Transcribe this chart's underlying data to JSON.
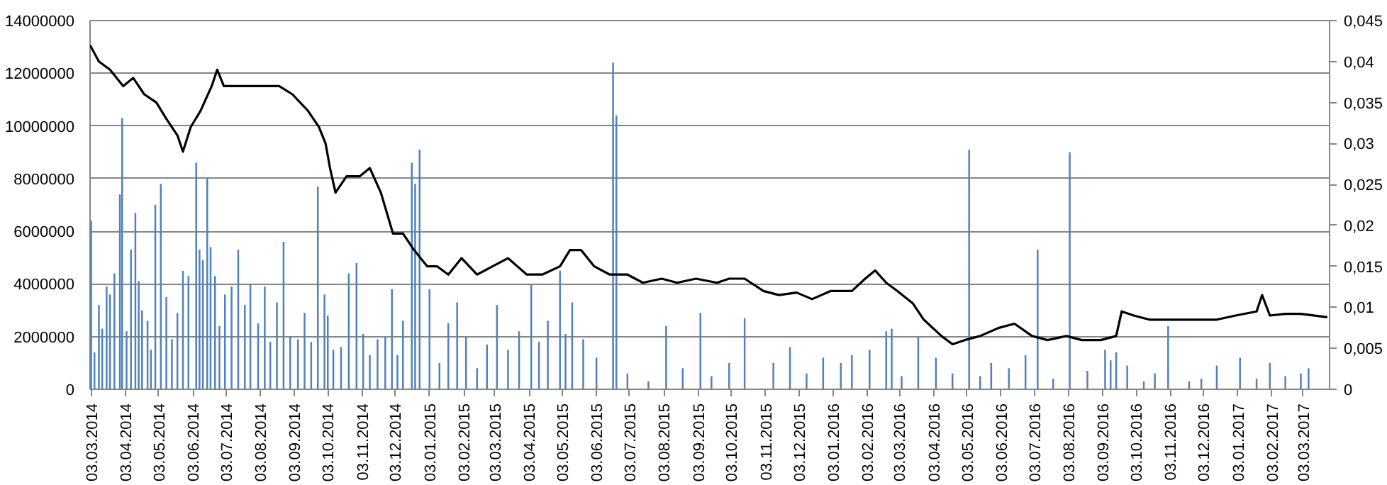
{
  "chart_data": {
    "type": "bar",
    "xlim": [
      "2014-03-02",
      "2017-03-27"
    ],
    "xticks": [
      {
        "value": "2014-03-03",
        "label": "03.03.2014"
      },
      {
        "value": "2014-04-03",
        "label": "03.04.2014"
      },
      {
        "value": "2014-05-03",
        "label": "03.05.2014"
      },
      {
        "value": "2014-06-03",
        "label": "03.06.2014"
      },
      {
        "value": "2014-07-03",
        "label": "03.07.2014"
      },
      {
        "value": "2014-08-03",
        "label": "03.08.2014"
      },
      {
        "value": "2014-09-03",
        "label": "03.09.2014"
      },
      {
        "value": "2014-10-03",
        "label": "03.10.2014"
      },
      {
        "value": "2014-11-03",
        "label": "03.11.2014"
      },
      {
        "value": "2014-12-03",
        "label": "03.12.2014"
      },
      {
        "value": "2015-01-03",
        "label": "03.01.2015"
      },
      {
        "value": "2015-02-03",
        "label": "03.02.2015"
      },
      {
        "value": "2015-03-03",
        "label": "03.03.2015"
      },
      {
        "value": "2015-04-03",
        "label": "03.04.2015"
      },
      {
        "value": "2015-05-03",
        "label": "03.05.2015"
      },
      {
        "value": "2015-06-03",
        "label": "03.06.2015"
      },
      {
        "value": "2015-07-03",
        "label": "03.07.2015"
      },
      {
        "value": "2015-08-03",
        "label": "03.08.2015"
      },
      {
        "value": "2015-09-03",
        "label": "03.09.2015"
      },
      {
        "value": "2015-10-03",
        "label": "03.10.2015"
      },
      {
        "value": "2015-11-03",
        "label": "03.11.2015"
      },
      {
        "value": "2015-12-03",
        "label": "03.12.2015"
      },
      {
        "value": "2016-01-03",
        "label": "03.01.2016"
      },
      {
        "value": "2016-02-03",
        "label": "03.02.2016"
      },
      {
        "value": "2016-03-03",
        "label": "03.03.2016"
      },
      {
        "value": "2016-04-03",
        "label": "03.04.2016"
      },
      {
        "value": "2016-05-03",
        "label": "03.05.2016"
      },
      {
        "value": "2016-06-03",
        "label": "03.06.2016"
      },
      {
        "value": "2016-07-03",
        "label": "03.07.2016"
      },
      {
        "value": "2016-08-03",
        "label": "03.08.2016"
      },
      {
        "value": "2016-09-03",
        "label": "03.09.2016"
      },
      {
        "value": "2016-10-03",
        "label": "03.10.2016"
      },
      {
        "value": "2016-11-03",
        "label": "03.11.2016"
      },
      {
        "value": "2016-12-03",
        "label": "03.12.2016"
      },
      {
        "value": "2017-01-03",
        "label": "03.01.2017"
      },
      {
        "value": "2017-02-03",
        "label": "03.02.2017"
      },
      {
        "value": "2017-03-03",
        "label": "03.03.2017"
      }
    ],
    "ylim": [
      0,
      14000000
    ],
    "yticks": [
      0,
      2000000,
      4000000,
      6000000,
      8000000,
      10000000,
      12000000,
      14000000
    ],
    "y2lim": [
      0,
      0.045
    ],
    "y2ticks": [
      0,
      {
        "value": 0.005,
        "label": "0,005"
      },
      {
        "value": 0.01,
        "label": "0,01"
      },
      {
        "value": 0.015,
        "label": "0,015"
      },
      {
        "value": 0.02,
        "label": "0,02"
      },
      {
        "value": 0.025,
        "label": "0,025"
      },
      {
        "value": 0.03,
        "label": "0,03"
      },
      {
        "value": 0.035,
        "label": "0,035"
      },
      {
        "value": 0.04,
        "label": "0,04"
      },
      {
        "value": 0.045,
        "label": "0,045"
      }
    ],
    "grid": "y",
    "series": [
      {
        "color": "#4f81bd",
        "x": [
          "2014-03-03",
          "2014-03-06",
          "2014-03-10",
          "2014-03-13",
          "2014-03-17",
          "2014-03-20",
          "2014-03-24",
          "2014-03-29",
          "2014-03-31",
          "2014-04-04",
          "2014-04-08",
          "2014-04-12",
          "2014-04-15",
          "2014-04-18",
          "2014-04-23",
          "2014-04-26",
          "2014-04-30",
          "2014-05-05",
          "2014-05-10",
          "2014-05-15",
          "2014-05-20",
          "2014-05-25",
          "2014-05-30",
          "2014-06-06",
          "2014-06-09",
          "2014-06-12",
          "2014-06-16",
          "2014-06-19",
          "2014-06-23",
          "2014-06-27",
          "2014-07-02",
          "2014-07-08",
          "2014-07-14",
          "2014-07-20",
          "2014-07-25",
          "2014-08-01",
          "2014-08-07",
          "2014-08-12",
          "2014-08-18",
          "2014-08-24",
          "2014-08-30",
          "2014-09-06",
          "2014-09-12",
          "2014-09-18",
          "2014-09-24",
          "2014-09-30",
          "2014-10-03",
          "2014-10-08",
          "2014-10-15",
          "2014-10-22",
          "2014-10-29",
          "2014-11-04",
          "2014-11-10",
          "2014-11-17",
          "2014-11-24",
          "2014-11-30",
          "2014-12-05",
          "2014-12-10",
          "2014-12-18",
          "2014-12-21",
          "2014-12-25",
          "2015-01-03",
          "2015-01-12",
          "2015-01-20",
          "2015-01-28",
          "2015-02-05",
          "2015-02-15",
          "2015-02-24",
          "2015-03-05",
          "2015-03-15",
          "2015-03-25",
          "2015-04-05",
          "2015-04-12",
          "2015-04-20",
          "2015-05-01",
          "2015-05-06",
          "2015-05-12",
          "2015-05-22",
          "2015-06-03",
          "2015-06-18",
          "2015-06-21",
          "2015-07-01",
          "2015-07-20",
          "2015-08-05",
          "2015-08-20",
          "2015-09-05",
          "2015-09-15",
          "2015-10-01",
          "2015-10-15",
          "2015-11-10",
          "2015-11-25",
          "2015-12-10",
          "2015-12-25",
          "2016-01-10",
          "2016-01-20",
          "2016-02-05",
          "2016-02-20",
          "2016-02-25",
          "2016-03-05",
          "2016-03-20",
          "2016-04-05",
          "2016-04-20",
          "2016-05-05",
          "2016-05-15",
          "2016-05-25",
          "2016-06-10",
          "2016-06-25",
          "2016-07-06",
          "2016-07-20",
          "2016-08-04",
          "2016-08-20",
          "2016-09-05",
          "2016-09-10",
          "2016-09-15",
          "2016-09-25",
          "2016-10-10",
          "2016-10-20",
          "2016-11-01",
          "2016-11-20",
          "2016-12-01",
          "2016-12-15",
          "2017-01-05",
          "2017-01-20",
          "2017-02-01",
          "2017-02-15",
          "2017-03-01",
          "2017-03-08"
        ],
        "values": [
          6400000,
          1400000,
          3200000,
          2300000,
          3900000,
          3600000,
          4400000,
          7400000,
          10300000,
          2200000,
          5300000,
          6700000,
          4100000,
          3000000,
          2600000,
          1500000,
          7000000,
          7800000,
          3500000,
          1900000,
          2900000,
          4500000,
          4300000,
          8600000,
          5300000,
          4900000,
          8000000,
          5400000,
          4300000,
          2400000,
          3600000,
          3900000,
          5300000,
          3200000,
          4000000,
          2500000,
          3900000,
          1800000,
          3300000,
          5600000,
          2000000,
          1900000,
          2900000,
          1800000,
          7700000,
          3600000,
          2800000,
          1500000,
          1600000,
          4400000,
          4800000,
          2100000,
          1300000,
          1900000,
          2000000,
          3800000,
          1300000,
          2600000,
          8600000,
          7800000,
          9100000,
          3800000,
          1000000,
          2500000,
          3300000,
          2000000,
          800000,
          1700000,
          3200000,
          1500000,
          2200000,
          4000000,
          1800000,
          2600000,
          4500000,
          2100000,
          3300000,
          1900000,
          1200000,
          12400000,
          10400000,
          600000,
          300000,
          2400000,
          800000,
          2900000,
          500000,
          1000000,
          2700000,
          1000000,
          1600000,
          600000,
          1200000,
          1000000,
          1300000,
          1500000,
          2200000,
          2300000,
          500000,
          2000000,
          1200000,
          600000,
          9100000,
          500000,
          1000000,
          800000,
          1300000,
          5300000,
          400000,
          9000000,
          700000,
          1500000,
          1100000,
          1400000,
          900000,
          300000,
          600000,
          2400000,
          300000,
          400000,
          900000,
          1200000,
          400000,
          1000000,
          500000,
          600000,
          800000
        ]
      },
      {
        "type": "line",
        "axis": "y2",
        "color": "#000000",
        "x": [
          "2014-03-02",
          "2014-03-10",
          "2014-03-20",
          "2014-04-01",
          "2014-04-10",
          "2014-04-20",
          "2014-05-01",
          "2014-05-10",
          "2014-05-20",
          "2014-05-25",
          "2014-06-01",
          "2014-06-10",
          "2014-06-20",
          "2014-06-25",
          "2014-07-01",
          "2014-07-15",
          "2014-08-01",
          "2014-08-20",
          "2014-09-01",
          "2014-09-15",
          "2014-09-25",
          "2014-10-01",
          "2014-10-05",
          "2014-10-10",
          "2014-10-20",
          "2014-11-01",
          "2014-11-10",
          "2014-11-20",
          "2014-12-01",
          "2014-12-10",
          "2014-12-20",
          "2015-01-01",
          "2015-01-10",
          "2015-01-20",
          "2015-02-01",
          "2015-02-15",
          "2015-03-01",
          "2015-03-15",
          "2015-04-01",
          "2015-04-15",
          "2015-05-01",
          "2015-05-10",
          "2015-05-20",
          "2015-06-01",
          "2015-06-15",
          "2015-07-01",
          "2015-07-15",
          "2015-08-01",
          "2015-08-15",
          "2015-09-01",
          "2015-09-20",
          "2015-10-01",
          "2015-10-15",
          "2015-11-01",
          "2015-11-15",
          "2015-12-01",
          "2015-12-15",
          "2016-01-01",
          "2016-01-20",
          "2016-02-01",
          "2016-02-10",
          "2016-02-20",
          "2016-03-01",
          "2016-03-15",
          "2016-03-25",
          "2016-04-10",
          "2016-04-20",
          "2016-05-01",
          "2016-05-15",
          "2016-06-01",
          "2016-06-15",
          "2016-07-01",
          "2016-07-15",
          "2016-08-01",
          "2016-08-15",
          "2016-09-01",
          "2016-09-15",
          "2016-09-20",
          "2016-10-01",
          "2016-10-15",
          "2016-11-01",
          "2016-11-15",
          "2016-12-01",
          "2016-12-15",
          "2017-01-01",
          "2017-01-20",
          "2017-01-25",
          "2017-02-01",
          "2017-02-15",
          "2017-03-01",
          "2017-03-25"
        ],
        "values": [
          0.042,
          0.04,
          0.039,
          0.037,
          0.038,
          0.036,
          0.035,
          0.033,
          0.031,
          0.029,
          0.032,
          0.034,
          0.037,
          0.039,
          0.037,
          0.037,
          0.037,
          0.037,
          0.036,
          0.034,
          0.032,
          0.03,
          0.027,
          0.024,
          0.026,
          0.026,
          0.027,
          0.024,
          0.019,
          0.019,
          0.017,
          0.015,
          0.015,
          0.014,
          0.016,
          0.014,
          0.015,
          0.016,
          0.014,
          0.014,
          0.015,
          0.017,
          0.017,
          0.015,
          0.014,
          0.014,
          0.013,
          0.0135,
          0.013,
          0.0135,
          0.013,
          0.0135,
          0.0135,
          0.012,
          0.0115,
          0.0118,
          0.011,
          0.012,
          0.012,
          0.0135,
          0.0145,
          0.013,
          0.012,
          0.0105,
          0.0085,
          0.0065,
          0.0055,
          0.006,
          0.0065,
          0.0075,
          0.008,
          0.0065,
          0.006,
          0.0065,
          0.006,
          0.006,
          0.0065,
          0.0095,
          0.009,
          0.0085,
          0.0085,
          0.0085,
          0.0085,
          0.0085,
          0.009,
          0.0095,
          0.0115,
          0.009,
          0.0092,
          0.0092,
          0.0088
        ]
      }
    ]
  }
}
